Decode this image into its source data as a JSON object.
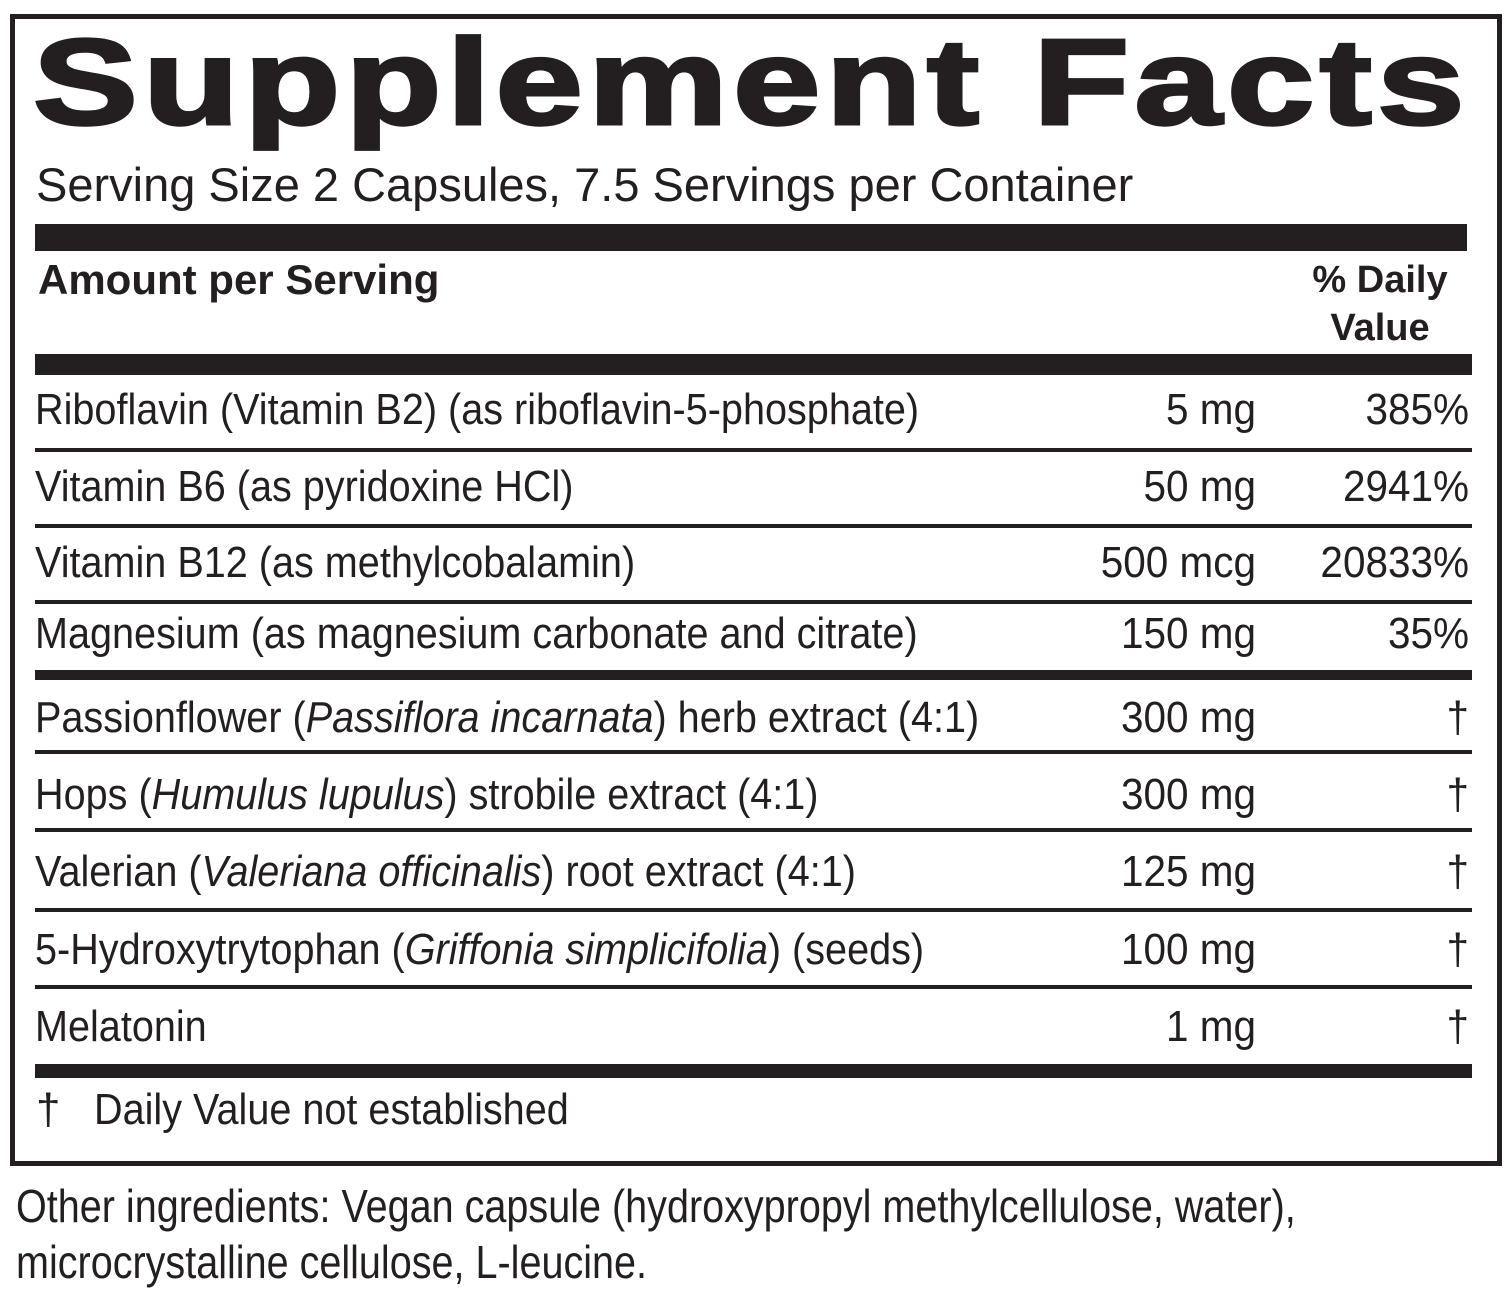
{
  "header": {
    "title": "Supplement Facts",
    "serving": "Serving Size 2 Capsules, 7.5 Servings per Container"
  },
  "table": {
    "columns": {
      "amount": "Amount per Serving",
      "daily_value": [
        "% Daily",
        "Value"
      ]
    },
    "rows": [
      {
        "name": [
          "Riboflavin (Vitamin B2) (as riboflavin-5-phosphate)"
        ],
        "amount": "5 mg",
        "daily_value": "385%"
      },
      {
        "name": [
          "Vitamin B6 (as pyridoxine HCl)"
        ],
        "amount": "50 mg",
        "daily_value": "2941%"
      },
      {
        "name": [
          "Vitamin B12 (as methylcobalamin)"
        ],
        "amount": "500 mcg",
        "daily_value": "20833%"
      },
      {
        "name": [
          "Magnesium (as magnesium carbonate and citrate)"
        ],
        "amount": "150 mg",
        "daily_value": "35%"
      },
      {
        "name": [
          "Passionflower (",
          "Passiflora incarnata",
          ") herb extract (4:1)"
        ],
        "amount": "300 mg",
        "daily_value": "†"
      },
      {
        "name": [
          "Hops (",
          "Humulus lupulus",
          ") strobile extract (4:1)"
        ],
        "amount": "300 mg",
        "daily_value": "†"
      },
      {
        "name": [
          "Valerian (",
          "Valeriana officinalis",
          ") root extract (4:1)"
        ],
        "amount": "125 mg",
        "daily_value": "†"
      },
      {
        "name": [
          "5-Hydroxytrytophan (",
          "Griffonia simplicifolia",
          ") (seeds)"
        ],
        "amount": "100 mg",
        "daily_value": "†"
      },
      {
        "name": [
          "Melatonin"
        ],
        "amount": "1 mg",
        "daily_value": "†"
      }
    ]
  },
  "footnote": {
    "symbol": "†",
    "text": "Daily Value not established"
  },
  "other_ingredients": [
    "Other ingredients: Vegan capsule (hydroxypropyl methylcellulose, water),",
    "microcrystalline cellulose, L-leucine."
  ]
}
